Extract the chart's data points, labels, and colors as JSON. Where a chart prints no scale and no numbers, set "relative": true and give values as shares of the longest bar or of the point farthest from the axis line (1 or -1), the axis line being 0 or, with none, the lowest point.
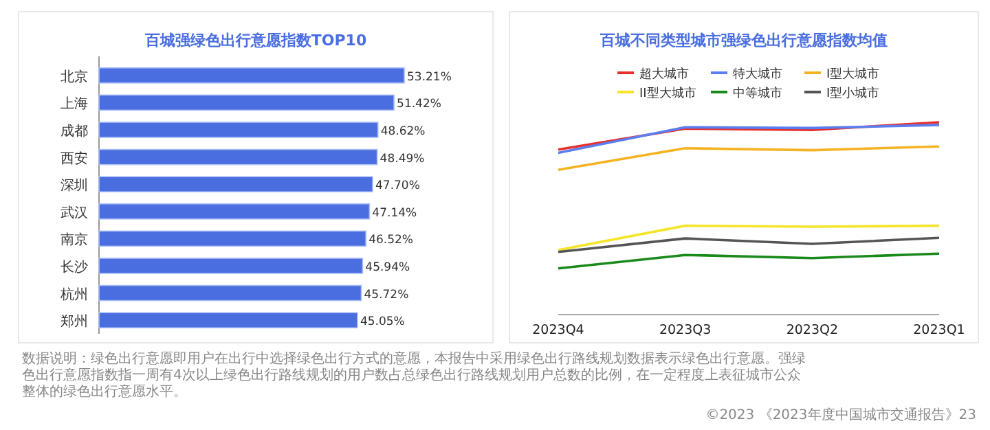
{
  "chart_data": [
    {
      "type": "bar",
      "orientation": "horizontal",
      "title": "百城强绿色出行意愿指数TOP10",
      "categories": [
        "北京",
        "上海",
        "成都",
        "西安",
        "深圳",
        "武汉",
        "南京",
        "长沙",
        "杭州",
        "郑州"
      ],
      "values": [
        53.21,
        51.42,
        48.62,
        48.49,
        47.7,
        47.14,
        46.52,
        45.94,
        45.72,
        45.05
      ],
      "value_labels": [
        "53.21%",
        "51.42%",
        "48.62%",
        "48.49%",
        "47.70%",
        "47.14%",
        "46.52%",
        "45.94%",
        "45.72%",
        "45.05%"
      ],
      "color": "#4a6ee0",
      "annotations": [
        "数据说明：绿色出行意愿即用户在出行中选择绿色出行方式的意愿，本报告中采用绿色出行路线规划数据表示绿色出行意愿。强绿色出行意愿指数指一周有4次以上绿色出行路线规划的用户数占总绿色出行路线规划用户总数的比例，在一定程度上表征城市公众整体的绿色出行意愿水平。"
      ]
    },
    {
      "type": "line",
      "title": "百城不同类型城市强绿色出行意愿指数均值",
      "categories": [
        "2023Q4",
        "2023Q3",
        "2023Q2",
        "2023Q1"
      ],
      "relative": true,
      "legend": "top",
      "annotations": [
        "©2023 《2023年度中国城市交通报告》23"
      ],
      "series": [
        {
          "name": "超大城市",
          "color": "#e8302a",
          "values": [
            0.858,
            0.967,
            0.96,
            1
          ]
        },
        {
          "name": "特大城市",
          "color": "#5a7ef0",
          "values": [
            0.841,
            0.974,
            0.97,
            0.986
          ]
        },
        {
          "name": "I型大城市",
          "color": "#f5b324",
          "values": [
            0.753,
            0.865,
            0.855,
            0.874
          ]
        },
        {
          "name": "II型大城市",
          "color": "#f5e52a",
          "values": [
            0.336,
            0.462,
            0.457,
            0.462
          ]
        },
        {
          "name": "中等城市",
          "color": "#1a8a1a",
          "values": [
            0.24,
            0.31,
            0.294,
            0.317
          ]
        },
        {
          "name": "I型小城市",
          "color": "#555555",
          "values": [
            0.326,
            0.396,
            0.368,
            0.399
          ]
        }
      ]
    }
  ]
}
